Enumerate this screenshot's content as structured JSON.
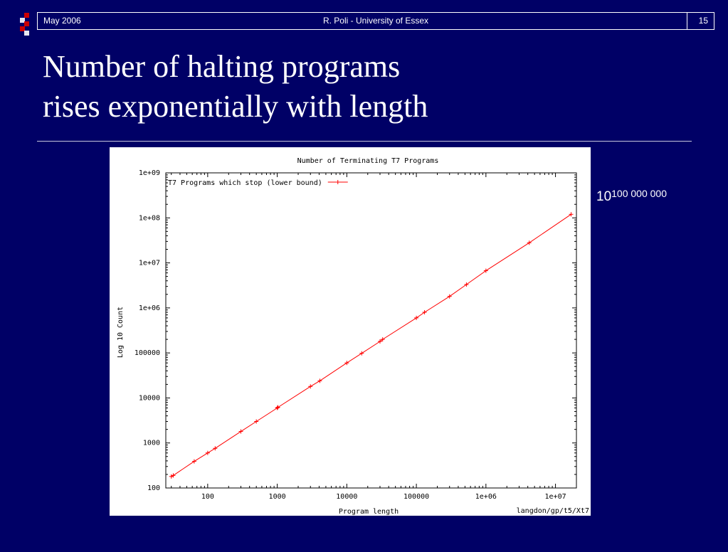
{
  "header": {
    "date": "May 2006",
    "center": "R. Poli - University of Essex",
    "slide_number": "15"
  },
  "slide_title": "Number of halting programs\nrises exponentially with length",
  "annotation": {
    "base": "10",
    "exponent": "100 000 000"
  },
  "colors": {
    "background": "#000066",
    "series": "#ff0000",
    "logo": "#cc0000"
  },
  "chart_data": {
    "type": "line",
    "title": "Number of Terminating T7 Programs",
    "xlabel": "Program length",
    "ylabel": "Log 10 Count",
    "footnote": "langdon/gp/t5/Xt7",
    "x_scale": "log",
    "y_scale": "log",
    "xlim": [
      25,
      20000000
    ],
    "ylim": [
      100,
      1000000000
    ],
    "x_ticks": [
      {
        "value": 100,
        "label": "100"
      },
      {
        "value": 1000,
        "label": "1000"
      },
      {
        "value": 10000,
        "label": "10000"
      },
      {
        "value": 100000,
        "label": "100000"
      },
      {
        "value": 1000000,
        "label": "1e+06"
      },
      {
        "value": 10000000,
        "label": "1e+07"
      }
    ],
    "y_ticks": [
      {
        "value": 100,
        "label": "100"
      },
      {
        "value": 1000,
        "label": "1000"
      },
      {
        "value": 10000,
        "label": "10000"
      },
      {
        "value": 100000,
        "label": "100000"
      },
      {
        "value": 1000000,
        "label": "1e+06"
      },
      {
        "value": 10000000,
        "label": "1e+07"
      },
      {
        "value": 100000000,
        "label": "1e+08"
      },
      {
        "value": 1000000000,
        "label": "1e+09"
      }
    ],
    "legend_position": "top-left",
    "grid": false,
    "series": [
      {
        "name": "T7 Programs which stop (lower bound)",
        "x": [
          30,
          32,
          64,
          100,
          128,
          300,
          500,
          1000,
          1024,
          3000,
          4096,
          10000,
          16384,
          30000,
          32768,
          100000,
          131072,
          300000,
          524288,
          1000000,
          4194304,
          16777216
        ],
        "y": [
          180,
          190,
          390,
          600,
          760,
          1800,
          3000,
          6000,
          6200,
          18000,
          24000,
          60000,
          98000,
          180000,
          200000,
          600000,
          800000,
          1800000,
          3300000,
          6700000,
          28000000,
          120000000
        ]
      }
    ]
  }
}
